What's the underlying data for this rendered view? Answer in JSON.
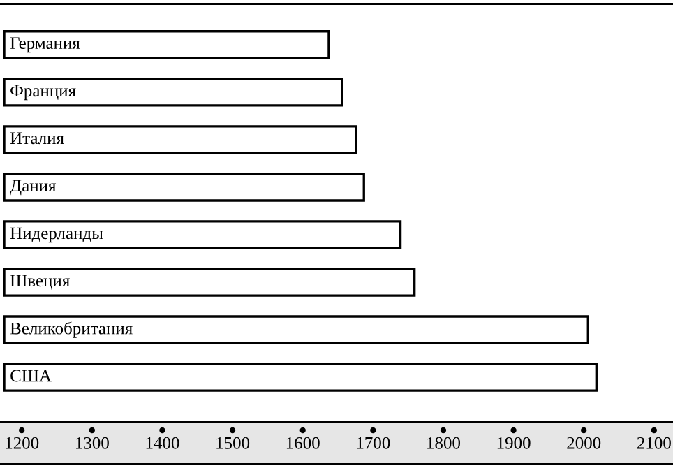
{
  "chart_data": {
    "type": "bar",
    "orientation": "horizontal",
    "categories": [
      "Германия",
      "Франция",
      "Италия",
      "Дания",
      "Нидерланды",
      "Швеция",
      "Великобритания",
      "США"
    ],
    "base": [
      1175,
      1175,
      1175,
      1175,
      1175,
      1175,
      1175,
      1175
    ],
    "values": [
      462,
      481,
      501,
      512,
      564,
      584,
      831,
      843
    ],
    "color": "#ffffff",
    "xlim": [
      1169,
      2127
    ],
    "xticks": [
      1200,
      1300,
      1400,
      1500,
      1600,
      1700,
      1800,
      1900,
      2000,
      2100
    ],
    "grid": false
  }
}
